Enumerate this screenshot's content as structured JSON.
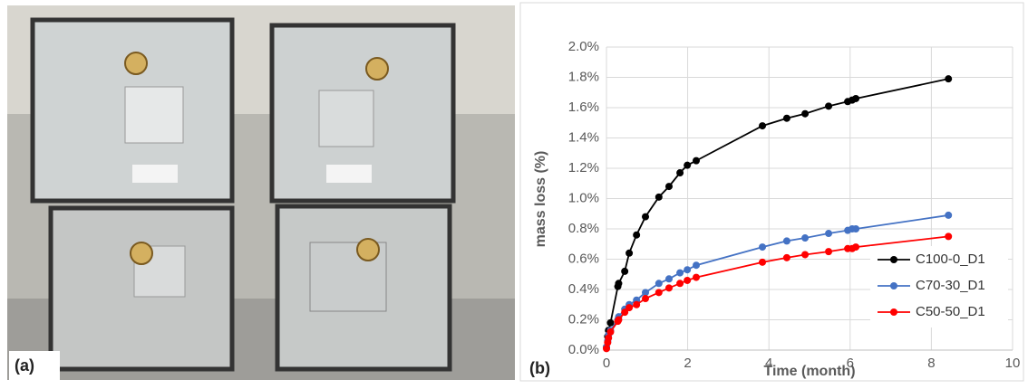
{
  "photo": {
    "label": "(a)"
  },
  "chart_data": {
    "type": "line",
    "panel_label": "(b)",
    "x_label": "Time (month)",
    "y_label": "mass loss (%)",
    "x": [
      0,
      0.03,
      0.05,
      0.1,
      0.28,
      0.3,
      0.45,
      0.56,
      0.74,
      0.96,
      1.29,
      1.54,
      1.81,
      1.99,
      2.21,
      3.84,
      4.44,
      4.89,
      5.47,
      5.94,
      6.05,
      6.14,
      8.42
    ],
    "series": [
      {
        "name": "C100-0_D1",
        "color": "#000000",
        "values": [
          0.02,
          0.09,
          0.13,
          0.18,
          0.42,
          0.44,
          0.52,
          0.64,
          0.76,
          0.88,
          1.01,
          1.08,
          1.17,
          1.22,
          1.25,
          1.48,
          1.53,
          1.56,
          1.61,
          1.64,
          1.65,
          1.66,
          1.79
        ]
      },
      {
        "name": "C70-30_D1",
        "color": "#4472c4",
        "values": [
          0.02,
          0.06,
          0.1,
          0.13,
          0.2,
          0.22,
          0.27,
          0.3,
          0.33,
          0.38,
          0.44,
          0.47,
          0.51,
          0.53,
          0.56,
          0.68,
          0.72,
          0.74,
          0.77,
          0.79,
          0.8,
          0.8,
          0.89
        ]
      },
      {
        "name": "C50-50_D1",
        "color": "#ff0000",
        "values": [
          0.01,
          0.05,
          0.08,
          0.12,
          0.19,
          0.2,
          0.25,
          0.28,
          0.3,
          0.34,
          0.38,
          0.41,
          0.44,
          0.46,
          0.48,
          0.58,
          0.61,
          0.63,
          0.65,
          0.67,
          0.67,
          0.68,
          0.75
        ]
      }
    ],
    "xlim": [
      0,
      10
    ],
    "xticks": [
      0,
      2,
      4,
      6,
      8,
      10
    ],
    "ylim": [
      0,
      2.0
    ],
    "yticks": [
      {
        "value": 0,
        "label": "0.0%"
      },
      {
        "value": 0.2,
        "label": "0.2%"
      },
      {
        "value": 0.4,
        "label": "0.4%"
      },
      {
        "value": 0.6,
        "label": "0.6%"
      },
      {
        "value": 0.8,
        "label": "0.8%"
      },
      {
        "value": 1.0,
        "label": "1.0%"
      },
      {
        "value": 1.2,
        "label": "1.2%"
      },
      {
        "value": 1.4,
        "label": "1.4%"
      },
      {
        "value": 1.6,
        "label": "1.6%"
      },
      {
        "value": 1.8,
        "label": "1.8%"
      },
      {
        "value": 2.0,
        "label": "2.0%"
      }
    ],
    "grid": true,
    "legend": "lower right"
  }
}
